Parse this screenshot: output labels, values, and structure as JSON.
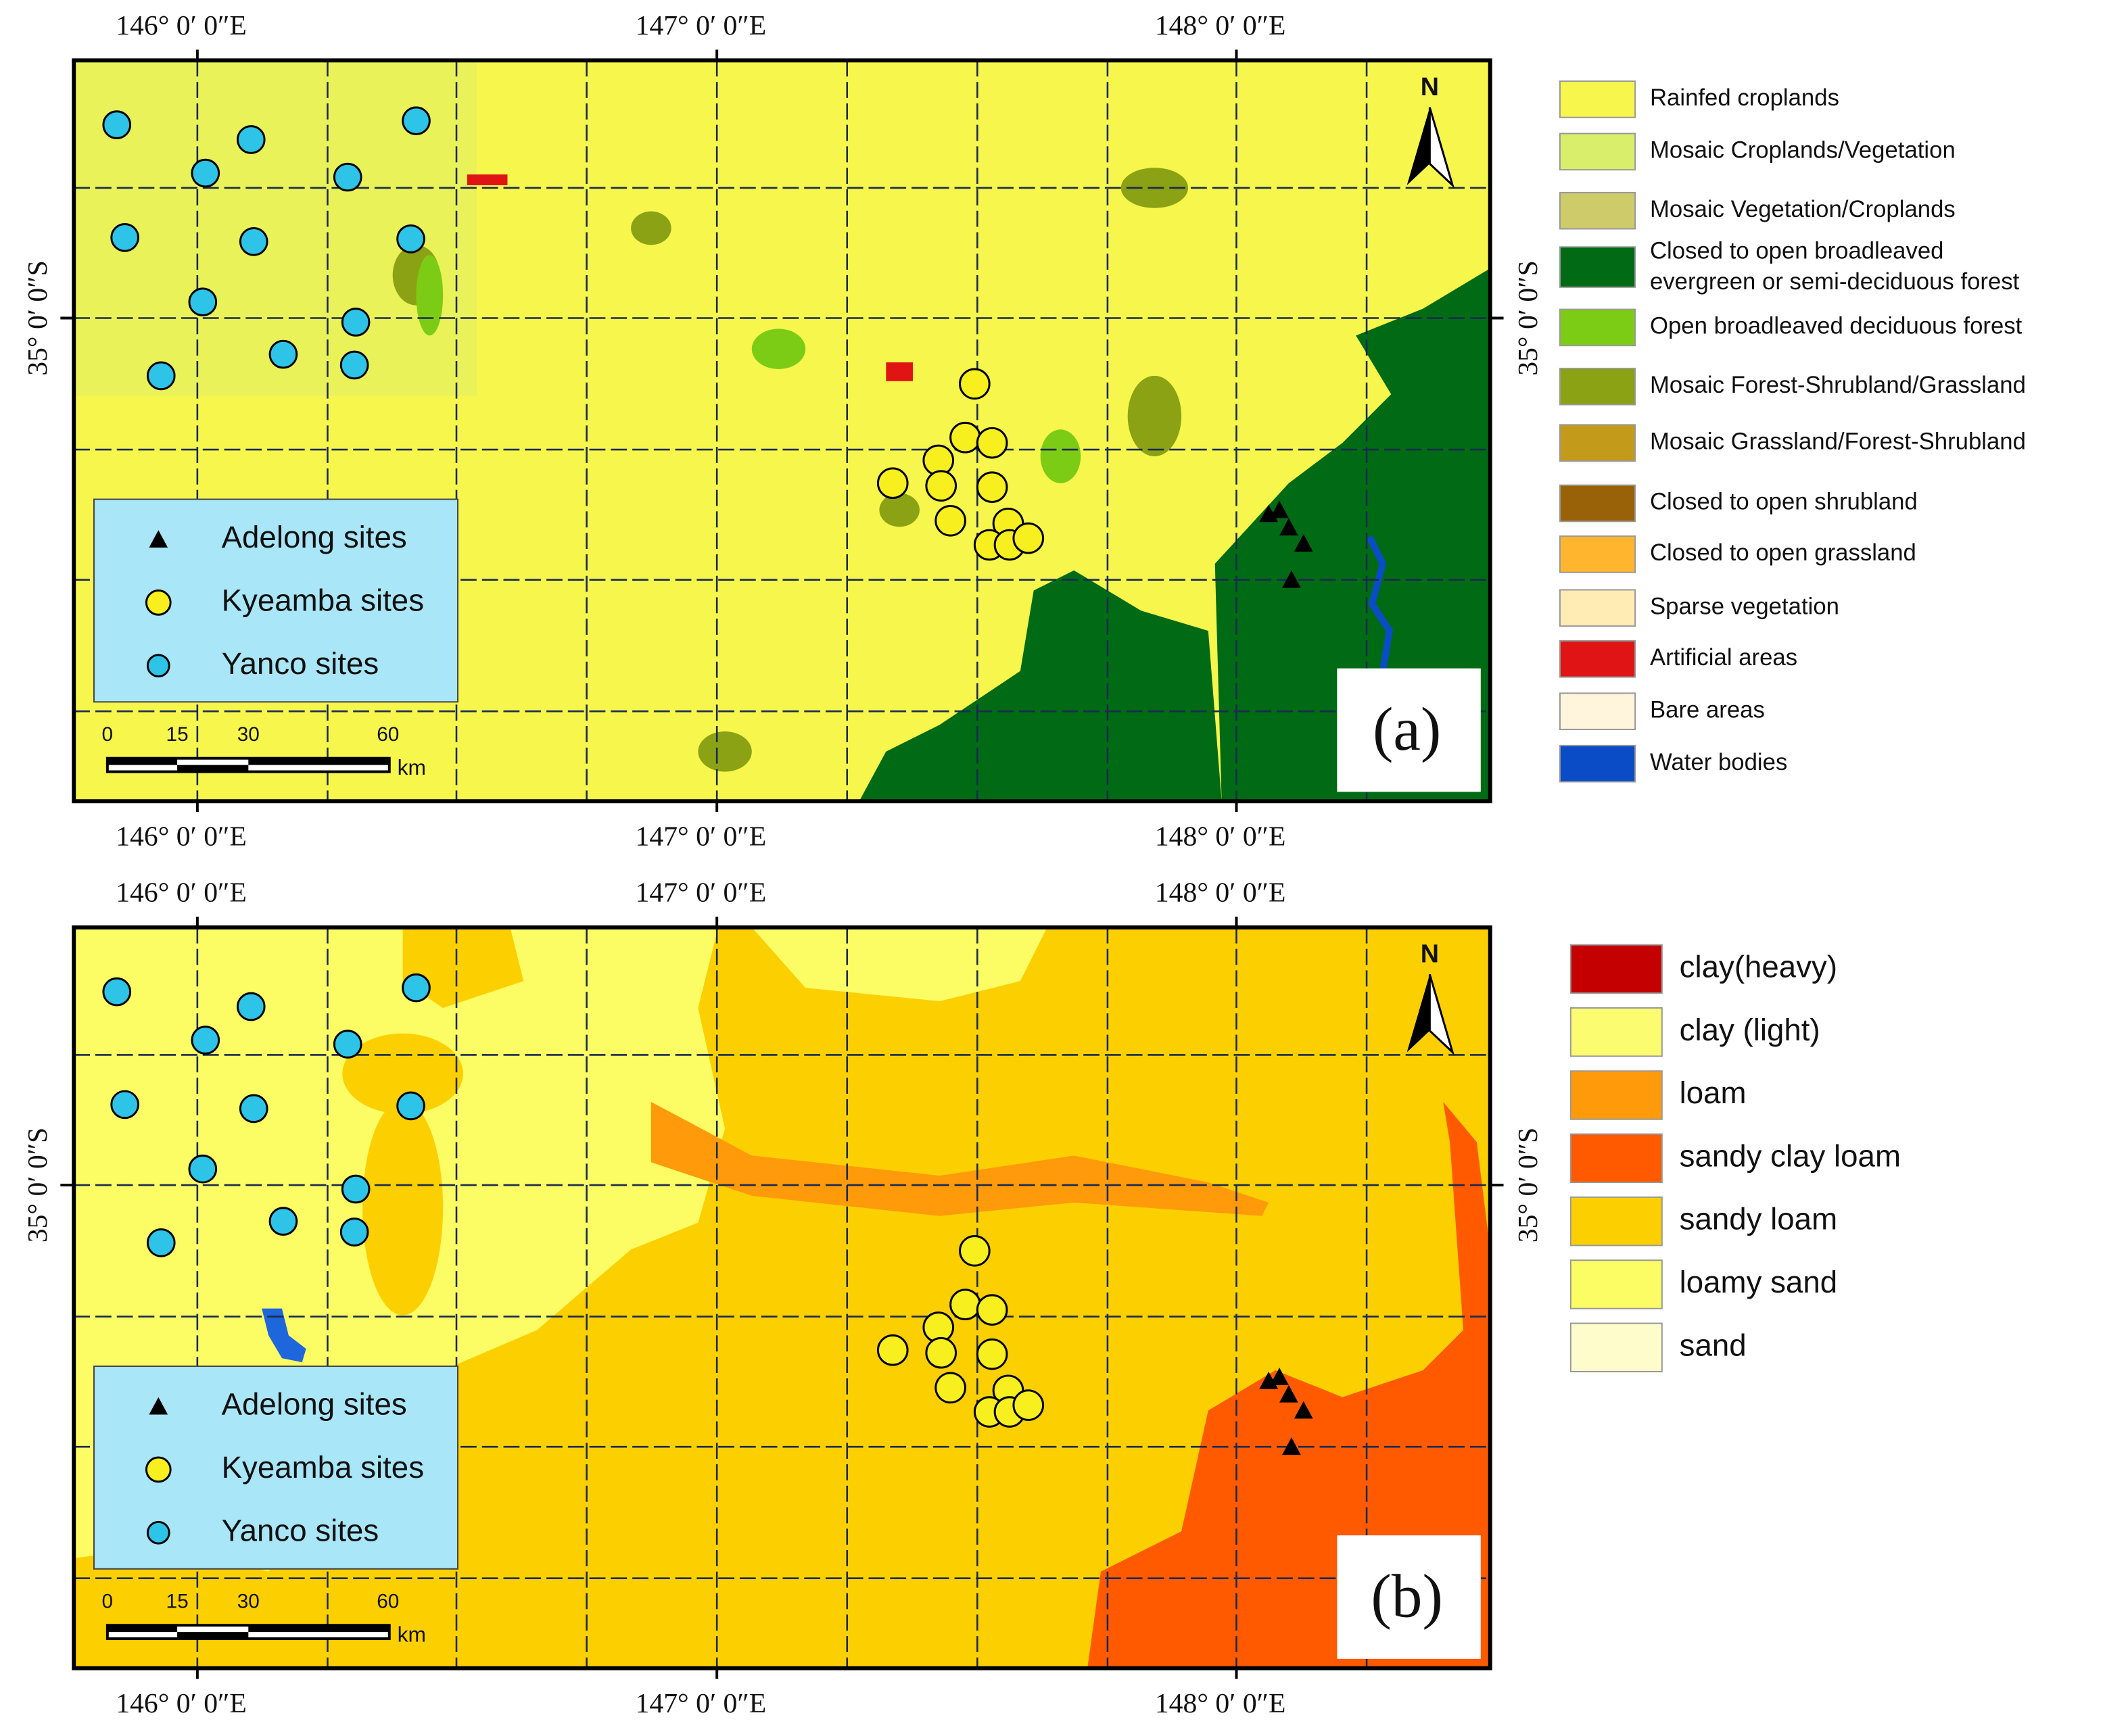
{
  "axis_labels": {
    "lon": [
      "146°  0′ 0″E",
      "147°  0′ 0″E",
      "148°  0′ 0″E"
    ],
    "lat": "35°  0′ 0″S"
  },
  "north": "N",
  "site_legend": [
    {
      "label": "Adelong sites"
    },
    {
      "label": "Kyeamba sites"
    },
    {
      "label": "Yanco sites"
    }
  ],
  "scale_bar": {
    "ticks": [
      0,
      15,
      30,
      60
    ],
    "unit": "km"
  },
  "panels": [
    {
      "label": "(a)",
      "legend": [
        {
          "label": "Rainfed croplands",
          "color": "#f7f64c"
        },
        {
          "label": "Mosaic Croplands/Vegetation",
          "color": "#d9ee6a"
        },
        {
          "label": "Mosaic Vegetation/Croplands",
          "color": "#cdcb6a"
        },
        {
          "label": [
            "Closed to open broadleaved",
            "evergreen or semi-deciduous forest"
          ],
          "color": "#006b14"
        },
        {
          "label": "Open broadleaved deciduous forest",
          "color": "#7ccc16"
        },
        {
          "label": "Mosaic Forest-Shrubland/Grassland",
          "color": "#8aa214"
        },
        {
          "label": "Mosaic Grassland/Forest-Shrubland",
          "color": "#c49a1a"
        },
        {
          "label": "Closed to open shrubland",
          "color": "#9a6208"
        },
        {
          "label": "Closed to open grassland",
          "color": "#ffb62e"
        },
        {
          "label": "Sparse vegetation",
          "color": "#ffebb4"
        },
        {
          "label": "Artificial areas",
          "color": "#e01414"
        },
        {
          "label": "Bare areas",
          "color": "#fff4dc"
        },
        {
          "label": "Water bodies",
          "color": "#0a4cc6"
        }
      ]
    },
    {
      "label": "(b)",
      "legend": [
        {
          "label": "clay(heavy)",
          "color": "#c40000"
        },
        {
          "label": "clay (light)",
          "color": "#fcfc70"
        },
        {
          "label": "loam",
          "color": "#ff9a0a"
        },
        {
          "label": "sandy clay loam",
          "color": "#ff5a00"
        },
        {
          "label": "sandy loam",
          "color": "#fcd000"
        },
        {
          "label": "loamy sand",
          "color": "#fcfc64"
        },
        {
          "label": "sand",
          "color": "#fffccc"
        }
      ]
    }
  ]
}
